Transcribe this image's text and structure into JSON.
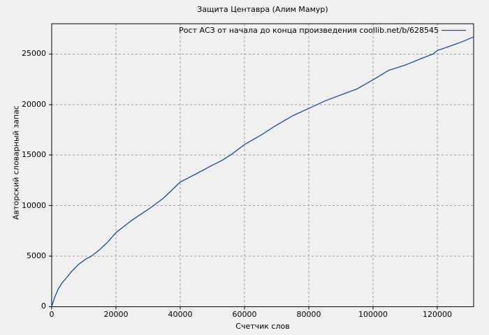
{
  "title": "Защита Центавра (Алим Мамур)",
  "legend_label": "Рост АСЗ от начала до конца произведения coollib.net/b/628545",
  "x_axis_label": "Счетчик слов",
  "y_axis_label": "Авторский словарный запас",
  "colors": {
    "line": "#1b4b9d",
    "grid": "#9e9e9e",
    "frame": "#000000",
    "background": "#f0f0f0",
    "text": "#000000"
  },
  "chart_data": {
    "type": "line",
    "title": "Защита Центавра (Алим Мамур)",
    "xlabel": "Счетчик слов",
    "ylabel": "Авторский словарный запас",
    "legend": [
      "Рост АСЗ от начала до конца произведения coollib.net/b/628545"
    ],
    "legend_position": "top-right",
    "grid": "dashed",
    "xlim": [
      0,
      131300
    ],
    "ylim": [
      0,
      28000
    ],
    "x_ticks": [
      0,
      20000,
      40000,
      60000,
      80000,
      100000,
      120000
    ],
    "y_ticks": [
      0,
      5000,
      10000,
      15000,
      20000,
      25000
    ],
    "series": [
      {
        "name": "Рост АСЗ от начала до конца произведения coollib.net/b/628545",
        "points": [
          [
            0,
            0
          ],
          [
            900,
            880
          ],
          [
            2000,
            1720
          ],
          [
            3200,
            2330
          ],
          [
            4600,
            2850
          ],
          [
            6100,
            3450
          ],
          [
            8260,
            4150
          ],
          [
            10440,
            4670
          ],
          [
            12400,
            5000
          ],
          [
            14800,
            5600
          ],
          [
            17300,
            6350
          ],
          [
            20000,
            7320
          ],
          [
            25000,
            8560
          ],
          [
            30000,
            9620
          ],
          [
            31700,
            10000
          ],
          [
            35000,
            10800
          ],
          [
            40000,
            12330
          ],
          [
            45000,
            13150
          ],
          [
            50000,
            14000
          ],
          [
            52750,
            14430
          ],
          [
            55650,
            15000
          ],
          [
            60000,
            16040
          ],
          [
            65000,
            16950
          ],
          [
            70000,
            17970
          ],
          [
            75000,
            18890
          ],
          [
            80000,
            19620
          ],
          [
            82600,
            20000
          ],
          [
            85000,
            20350
          ],
          [
            90000,
            20950
          ],
          [
            95000,
            21540
          ],
          [
            100000,
            22450
          ],
          [
            105000,
            23400
          ],
          [
            110000,
            23900
          ],
          [
            115000,
            24550
          ],
          [
            118700,
            25000
          ],
          [
            120000,
            25350
          ],
          [
            125000,
            25900
          ],
          [
            128000,
            26250
          ],
          [
            131300,
            26700
          ]
        ]
      }
    ]
  }
}
